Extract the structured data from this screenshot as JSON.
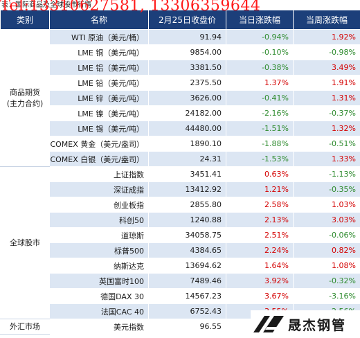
{
  "caption": "表：国际商品及全球股市行情",
  "watermark_phone": "Tel:13310627581, 13306359644",
  "logo_text": "晟杰钢管",
  "header": {
    "category": "类别",
    "name": "名称",
    "close": "2月25日收盘价",
    "day_change": "当日涨跌幅",
    "week_change": "当周涨跌幅"
  },
  "groups": [
    {
      "label": "商品期货\n(主力合约)",
      "rows": [
        {
          "name": "WTI 原油（美元/桶）",
          "close": "91.94",
          "day": "-0.94%",
          "week": "1.92%"
        },
        {
          "name": "LME 铜（美元/吨）",
          "close": "9854.00",
          "day": "-0.10%",
          "week": "-0.98%"
        },
        {
          "name": "LME 铝（美元/吨）",
          "close": "3381.50",
          "day": "-0.38%",
          "week": "3.49%"
        },
        {
          "name": "LME 铅（美元/吨）",
          "close": "2375.50",
          "day": "1.37%",
          "week": "1.91%"
        },
        {
          "name": "LME 锌（美元/吨）",
          "close": "3626.00",
          "day": "-0.41%",
          "week": "1.31%"
        },
        {
          "name": "LME 镍（美元/吨）",
          "close": "24182.00",
          "day": "-2.16%",
          "week": "-0.37%"
        },
        {
          "name": "LME 锡（美元/吨）",
          "close": "44480.00",
          "day": "-1.51%",
          "week": "1.32%"
        },
        {
          "name": "COMEX 黄金（美元/盎司）",
          "close": "1890.10",
          "day": "-1.88%",
          "week": "-0.51%"
        },
        {
          "name": "COMEX 白银（美元/盎司）",
          "close": "24.31",
          "day": "-1.53%",
          "week": "1.33%"
        }
      ]
    },
    {
      "label": "全球股市",
      "rows": [
        {
          "name": "上证指数",
          "close": "3451.41",
          "day": "0.63%",
          "week": "-1.13%"
        },
        {
          "name": "深证成指",
          "close": "13412.92",
          "day": "1.21%",
          "week": "-0.35%"
        },
        {
          "name": "创业板指",
          "close": "2855.80",
          "day": "2.58%",
          "week": "1.03%"
        },
        {
          "name": "科创50",
          "close": "1240.88",
          "day": "2.13%",
          "week": "3.03%"
        },
        {
          "name": "道琼斯",
          "close": "34058.75",
          "day": "2.51%",
          "week": "-0.06%"
        },
        {
          "name": "标普500",
          "close": "4384.65",
          "day": "2.24%",
          "week": "0.82%"
        },
        {
          "name": "纳斯达克",
          "close": "13694.62",
          "day": "1.64%",
          "week": "1.08%"
        },
        {
          "name": "英国富时100",
          "close": "7489.46",
          "day": "3.92%",
          "week": "-0.32%"
        },
        {
          "name": "德国DAX 30",
          "close": "14567.23",
          "day": "3.67%",
          "week": "-3.16%"
        },
        {
          "name": "法国CAC 40",
          "close": "6752.43",
          "day": "3.55%",
          "week": "-2.56%"
        }
      ]
    },
    {
      "label": "外汇市场",
      "rows": [
        {
          "name": "美元指数",
          "close": "96.55",
          "day": "",
          "week": ""
        }
      ]
    }
  ]
}
